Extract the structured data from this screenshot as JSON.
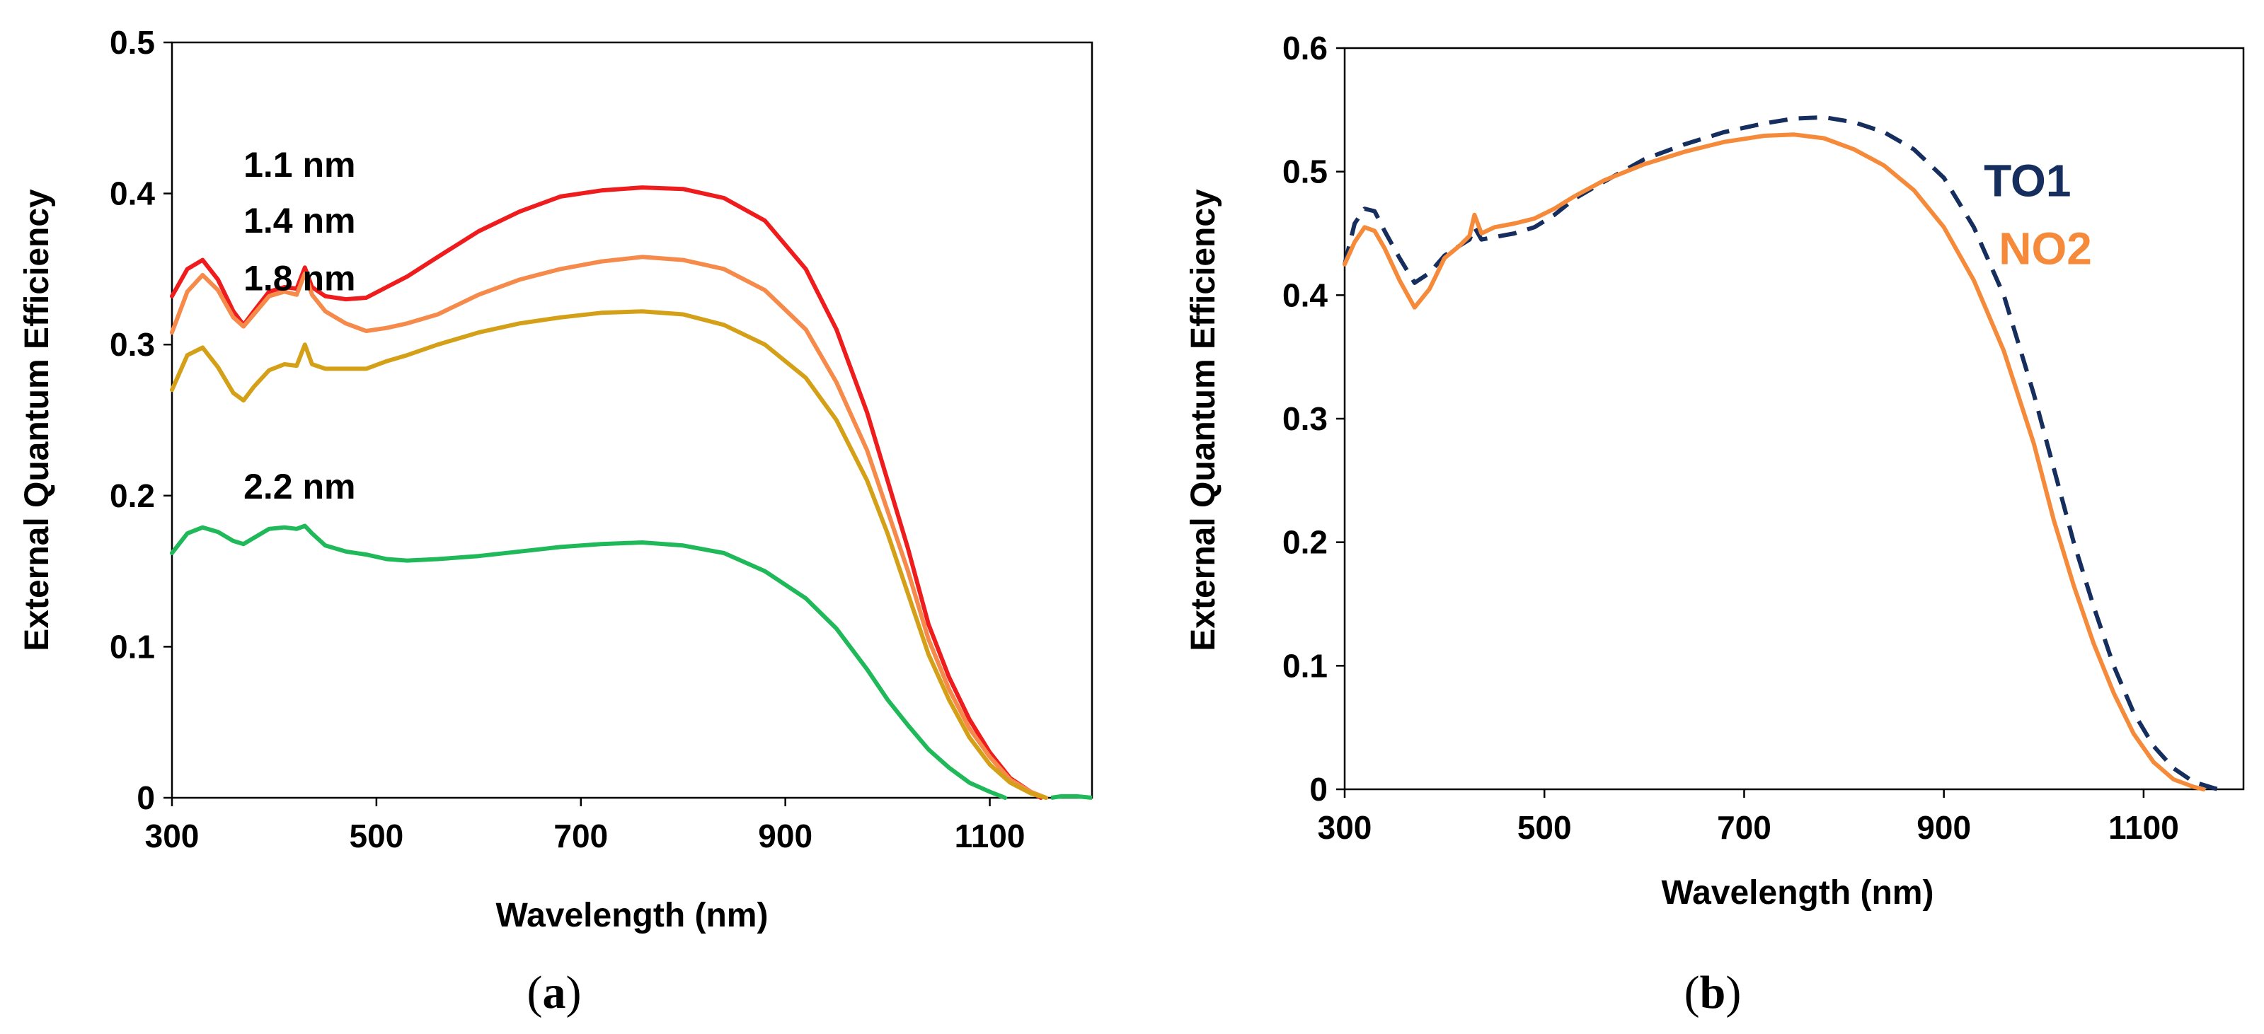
{
  "chart_data": [
    {
      "type": "line",
      "caption": {
        "open": "(",
        "letter": "a",
        "close": ")"
      },
      "xlabel": "Wavelength (nm)",
      "ylabel": "External Quantum Efficiency",
      "xlim": [
        300,
        1200
      ],
      "ylim": [
        0,
        0.5
      ],
      "xticks": [
        300,
        500,
        700,
        900,
        1100
      ],
      "xtick_labels": [
        "300",
        "500",
        "700",
        "900",
        "1100"
      ],
      "yticks": [
        0,
        0.1,
        0.2,
        0.3,
        0.4,
        0.5
      ],
      "ytick_labels": [
        "0",
        "0.1",
        "0.2",
        "0.3",
        "0.4",
        "0.5"
      ],
      "grid": false,
      "series": [
        {
          "name": "1.1 nm",
          "color": "#ee1c1c",
          "dash": "",
          "label_at": [
            370,
            0.411
          ],
          "points": [
            [
              300,
              0.332
            ],
            [
              315,
              0.35
            ],
            [
              330,
              0.356
            ],
            [
              345,
              0.343
            ],
            [
              360,
              0.322
            ],
            [
              370,
              0.313
            ],
            [
              380,
              0.322
            ],
            [
              395,
              0.335
            ],
            [
              410,
              0.338
            ],
            [
              422,
              0.337
            ],
            [
              430,
              0.351
            ],
            [
              437,
              0.338
            ],
            [
              450,
              0.332
            ],
            [
              470,
              0.33
            ],
            [
              490,
              0.331
            ],
            [
              510,
              0.338
            ],
            [
              530,
              0.345
            ],
            [
              560,
              0.358
            ],
            [
              600,
              0.375
            ],
            [
              640,
              0.388
            ],
            [
              680,
              0.398
            ],
            [
              720,
              0.402
            ],
            [
              760,
              0.404
            ],
            [
              800,
              0.403
            ],
            [
              840,
              0.397
            ],
            [
              880,
              0.382
            ],
            [
              920,
              0.35
            ],
            [
              950,
              0.31
            ],
            [
              980,
              0.255
            ],
            [
              1000,
              0.21
            ],
            [
              1020,
              0.165
            ],
            [
              1040,
              0.115
            ],
            [
              1060,
              0.08
            ],
            [
              1080,
              0.052
            ],
            [
              1100,
              0.03
            ],
            [
              1120,
              0.013
            ],
            [
              1140,
              0.004
            ],
            [
              1150,
              0
            ]
          ]
        },
        {
          "name": "1.4 nm",
          "color": "#f58a4a",
          "dash": "",
          "label_at": [
            370,
            0.374
          ],
          "points": [
            [
              300,
              0.308
            ],
            [
              315,
              0.335
            ],
            [
              330,
              0.346
            ],
            [
              345,
              0.336
            ],
            [
              360,
              0.318
            ],
            [
              370,
              0.312
            ],
            [
              380,
              0.32
            ],
            [
              395,
              0.332
            ],
            [
              410,
              0.335
            ],
            [
              422,
              0.333
            ],
            [
              430,
              0.347
            ],
            [
              437,
              0.333
            ],
            [
              450,
              0.322
            ],
            [
              470,
              0.314
            ],
            [
              490,
              0.309
            ],
            [
              510,
              0.311
            ],
            [
              530,
              0.314
            ],
            [
              560,
              0.32
            ],
            [
              600,
              0.333
            ],
            [
              640,
              0.343
            ],
            [
              680,
              0.35
            ],
            [
              720,
              0.355
            ],
            [
              760,
              0.358
            ],
            [
              800,
              0.356
            ],
            [
              840,
              0.35
            ],
            [
              880,
              0.336
            ],
            [
              920,
              0.31
            ],
            [
              950,
              0.275
            ],
            [
              980,
              0.23
            ],
            [
              1000,
              0.19
            ],
            [
              1020,
              0.15
            ],
            [
              1040,
              0.105
            ],
            [
              1060,
              0.072
            ],
            [
              1080,
              0.046
            ],
            [
              1100,
              0.027
            ],
            [
              1120,
              0.012
            ],
            [
              1140,
              0.004
            ],
            [
              1155,
              0
            ]
          ]
        },
        {
          "name": "1.8 nm",
          "color": "#d4a017",
          "dash": "",
          "label_at": [
            370,
            0.336
          ],
          "points": [
            [
              300,
              0.27
            ],
            [
              315,
              0.293
            ],
            [
              330,
              0.298
            ],
            [
              345,
              0.285
            ],
            [
              360,
              0.268
            ],
            [
              370,
              0.263
            ],
            [
              380,
              0.272
            ],
            [
              395,
              0.283
            ],
            [
              410,
              0.287
            ],
            [
              422,
              0.286
            ],
            [
              430,
              0.3
            ],
            [
              437,
              0.287
            ],
            [
              450,
              0.284
            ],
            [
              470,
              0.284
            ],
            [
              490,
              0.284
            ],
            [
              510,
              0.289
            ],
            [
              530,
              0.293
            ],
            [
              560,
              0.3
            ],
            [
              600,
              0.308
            ],
            [
              640,
              0.314
            ],
            [
              680,
              0.318
            ],
            [
              720,
              0.321
            ],
            [
              760,
              0.322
            ],
            [
              800,
              0.32
            ],
            [
              840,
              0.313
            ],
            [
              880,
              0.3
            ],
            [
              920,
              0.278
            ],
            [
              950,
              0.25
            ],
            [
              980,
              0.21
            ],
            [
              1000,
              0.175
            ],
            [
              1020,
              0.135
            ],
            [
              1040,
              0.095
            ],
            [
              1060,
              0.065
            ],
            [
              1080,
              0.04
            ],
            [
              1100,
              0.022
            ],
            [
              1120,
              0.01
            ],
            [
              1140,
              0.003
            ],
            [
              1155,
              0
            ]
          ]
        },
        {
          "name": "2.2 nm",
          "color": "#20b95a",
          "dash": "",
          "label_at": [
            370,
            0.198
          ],
          "points": [
            [
              300,
              0.162
            ],
            [
              315,
              0.175
            ],
            [
              330,
              0.179
            ],
            [
              345,
              0.176
            ],
            [
              360,
              0.17
            ],
            [
              370,
              0.168
            ],
            [
              380,
              0.172
            ],
            [
              395,
              0.178
            ],
            [
              410,
              0.179
            ],
            [
              422,
              0.178
            ],
            [
              430,
              0.18
            ],
            [
              437,
              0.175
            ],
            [
              450,
              0.167
            ],
            [
              470,
              0.163
            ],
            [
              490,
              0.161
            ],
            [
              510,
              0.158
            ],
            [
              530,
              0.157
            ],
            [
              560,
              0.158
            ],
            [
              600,
              0.16
            ],
            [
              640,
              0.163
            ],
            [
              680,
              0.166
            ],
            [
              720,
              0.168
            ],
            [
              760,
              0.169
            ],
            [
              800,
              0.167
            ],
            [
              840,
              0.162
            ],
            [
              880,
              0.15
            ],
            [
              920,
              0.132
            ],
            [
              950,
              0.112
            ],
            [
              980,
              0.085
            ],
            [
              1000,
              0.065
            ],
            [
              1020,
              0.048
            ],
            [
              1040,
              0.032
            ],
            [
              1060,
              0.02
            ],
            [
              1080,
              0.01
            ],
            [
              1100,
              0.004
            ],
            [
              1115,
              0
            ]
          ]
        }
      ],
      "tail": {
        "color": "#20b95a",
        "points": [
          [
            1160,
            0
          ],
          [
            1170,
            0.001
          ],
          [
            1185,
            0.001
          ],
          [
            1200,
            0
          ]
        ]
      }
    },
    {
      "type": "line",
      "caption": {
        "open": "(",
        "letter": "b",
        "close": ")"
      },
      "xlabel": "Wavelength (nm)",
      "ylabel": "External Quantum Efficiency",
      "xlim": [
        300,
        1200
      ],
      "ylim": [
        0,
        0.6
      ],
      "xticks": [
        300,
        500,
        700,
        900,
        1100
      ],
      "xtick_labels": [
        "300",
        "500",
        "700",
        "900",
        "1100"
      ],
      "yticks": [
        0,
        0.1,
        0.2,
        0.3,
        0.4,
        0.5,
        0.6
      ],
      "ytick_labels": [
        "0",
        "0.1",
        "0.2",
        "0.3",
        "0.4",
        "0.5",
        "0.6"
      ],
      "grid": false,
      "series": [
        {
          "name": "TO1",
          "color": "#152e5e",
          "dash": "26,16",
          "label_at": [
            940,
            0.48
          ],
          "points": [
            [
              300,
              0.425
            ],
            [
              310,
              0.458
            ],
            [
              320,
              0.47
            ],
            [
              330,
              0.468
            ],
            [
              340,
              0.452
            ],
            [
              355,
              0.43
            ],
            [
              370,
              0.41
            ],
            [
              385,
              0.418
            ],
            [
              400,
              0.432
            ],
            [
              415,
              0.44
            ],
            [
              425,
              0.445
            ],
            [
              430,
              0.455
            ],
            [
              437,
              0.445
            ],
            [
              450,
              0.447
            ],
            [
              470,
              0.45
            ],
            [
              490,
              0.455
            ],
            [
              510,
              0.465
            ],
            [
              530,
              0.478
            ],
            [
              560,
              0.492
            ],
            [
              600,
              0.51
            ],
            [
              640,
              0.522
            ],
            [
              680,
              0.532
            ],
            [
              720,
              0.539
            ],
            [
              750,
              0.543
            ],
            [
              780,
              0.544
            ],
            [
              810,
              0.54
            ],
            [
              840,
              0.532
            ],
            [
              870,
              0.518
            ],
            [
              900,
              0.495
            ],
            [
              930,
              0.455
            ],
            [
              960,
              0.4
            ],
            [
              990,
              0.32
            ],
            [
              1010,
              0.26
            ],
            [
              1030,
              0.2
            ],
            [
              1050,
              0.148
            ],
            [
              1070,
              0.1
            ],
            [
              1090,
              0.062
            ],
            [
              1110,
              0.035
            ],
            [
              1130,
              0.017
            ],
            [
              1150,
              0.006
            ],
            [
              1170,
              0.001
            ],
            [
              1175,
              0
            ]
          ]
        },
        {
          "name": "NO2",
          "color": "#f58a3a",
          "dash": "",
          "label_at": [
            955,
            0.425
          ],
          "points": [
            [
              300,
              0.425
            ],
            [
              310,
              0.443
            ],
            [
              320,
              0.455
            ],
            [
              330,
              0.452
            ],
            [
              340,
              0.438
            ],
            [
              355,
              0.412
            ],
            [
              370,
              0.39
            ],
            [
              385,
              0.405
            ],
            [
              400,
              0.43
            ],
            [
              415,
              0.44
            ],
            [
              425,
              0.448
            ],
            [
              430,
              0.465
            ],
            [
              437,
              0.45
            ],
            [
              450,
              0.455
            ],
            [
              470,
              0.458
            ],
            [
              490,
              0.462
            ],
            [
              510,
              0.47
            ],
            [
              530,
              0.48
            ],
            [
              560,
              0.493
            ],
            [
              600,
              0.506
            ],
            [
              640,
              0.516
            ],
            [
              680,
              0.524
            ],
            [
              720,
              0.529
            ],
            [
              750,
              0.53
            ],
            [
              780,
              0.527
            ],
            [
              810,
              0.518
            ],
            [
              840,
              0.505
            ],
            [
              870,
              0.485
            ],
            [
              900,
              0.455
            ],
            [
              930,
              0.412
            ],
            [
              960,
              0.355
            ],
            [
              990,
              0.28
            ],
            [
              1010,
              0.218
            ],
            [
              1030,
              0.165
            ],
            [
              1050,
              0.118
            ],
            [
              1070,
              0.078
            ],
            [
              1090,
              0.045
            ],
            [
              1110,
              0.022
            ],
            [
              1130,
              0.008
            ],
            [
              1150,
              0.002
            ],
            [
              1160,
              0
            ]
          ]
        }
      ]
    }
  ]
}
